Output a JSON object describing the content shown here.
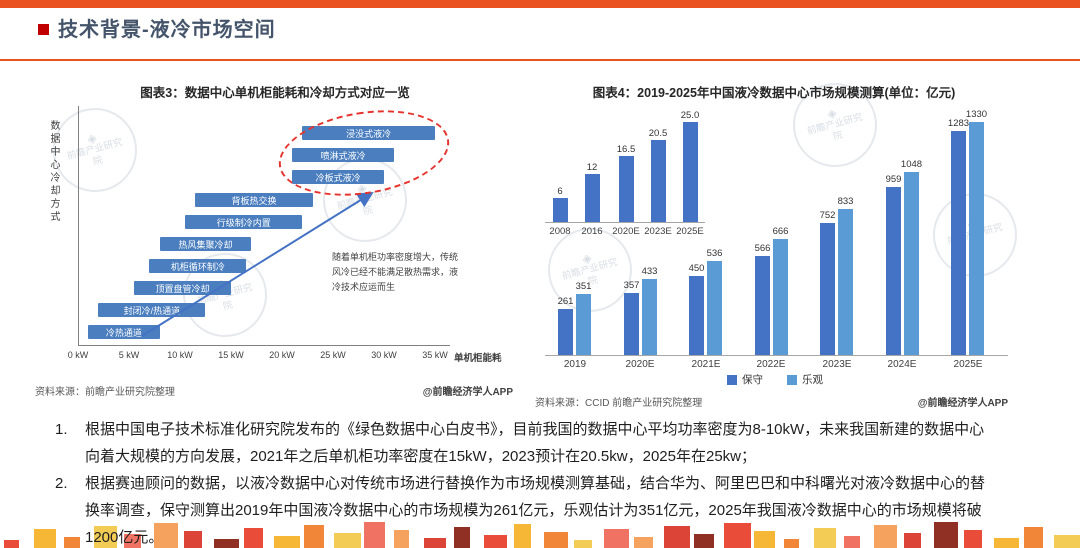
{
  "page": {
    "title": "技术背景-液冷市场空间"
  },
  "colors": {
    "accent_orange": "#ea5222",
    "bullet_red": "#c00000",
    "title_text": "#44546a",
    "bar_blue": "#4a7ebe",
    "highlight_red": "#e5342e"
  },
  "watermark": {
    "text": "前瞻产业研究院"
  },
  "chart_data": [
    {
      "type": "bar",
      "id": "chart3",
      "title": "图表3：数据中心单机柜能耗和冷却方式对应一览",
      "orientation": "horizontal-range",
      "xlabel": "单机柜能耗",
      "ylabel": "数据中心冷却方式",
      "x_ticks": [
        "0 kW",
        "5 kW",
        "10 kW",
        "15 kW",
        "20 kW",
        "25 kW",
        "30 kW",
        "35 kW"
      ],
      "xlim_kw": [
        0,
        36
      ],
      "grid": false,
      "methods": [
        {
          "label": "浸没式液冷",
          "range_kw": [
            22,
            35
          ],
          "highlighted": true
        },
        {
          "label": "喷淋式液冷",
          "range_kw": [
            21,
            31
          ],
          "highlighted": true
        },
        {
          "label": "冷板式液冷",
          "range_kw": [
            21,
            30
          ],
          "highlighted": true
        },
        {
          "label": "背板热交换",
          "range_kw": [
            11.5,
            23
          ],
          "highlighted": false
        },
        {
          "label": "行级制冷内置",
          "range_kw": [
            10.5,
            22
          ],
          "highlighted": false
        },
        {
          "label": "热风集聚冷却",
          "range_kw": [
            8,
            17
          ],
          "highlighted": false
        },
        {
          "label": "机柜循环制冷",
          "range_kw": [
            7,
            16.5
          ],
          "highlighted": false
        },
        {
          "label": "顶置盘管冷却",
          "range_kw": [
            5.5,
            15
          ],
          "highlighted": false
        },
        {
          "label": "封闭冷/热通道",
          "range_kw": [
            2,
            12.5
          ],
          "highlighted": false
        },
        {
          "label": "冷热通道",
          "range_kw": [
            1,
            8
          ],
          "highlighted": false
        }
      ],
      "annotation": "随着单机柜功率密度增大，传统风冷已经不能满足散热需求，液冷技术应运而生",
      "source": "资料来源：前瞻产业研究院整理",
      "credit": "@前瞻经济学人APP"
    },
    {
      "type": "bar",
      "id": "chart4",
      "title": "图表4：2019-2025年中国液冷数据中心市场规模测算(单位：亿元)",
      "categories": [
        "2019",
        "2020E",
        "2021E",
        "2022E",
        "2023E",
        "2024E",
        "2025E"
      ],
      "series": [
        {
          "name": "保守",
          "color": "#4472c4",
          "values": [
            261,
            357,
            450,
            566,
            752,
            959,
            1283
          ]
        },
        {
          "name": "乐观",
          "color": "#5b9bd5",
          "values": [
            351,
            433,
            536,
            666,
            833,
            1048,
            1330
          ]
        }
      ],
      "ylim": [
        0,
        1400
      ],
      "grid": false,
      "legend_position": "bottom",
      "inset": {
        "categories": [
          "2008",
          "2016",
          "2020E",
          "2023E",
          "2025E"
        ],
        "values": [
          6,
          12,
          16.5,
          20.5,
          25
        ],
        "value_labels": [
          "6",
          "12",
          "16.5",
          "20.5",
          "25.0"
        ]
      },
      "source": "资料来源：CCID 前瞻产业研究院整理",
      "credit": "@前瞻经济学人APP"
    }
  ],
  "notes": [
    {
      "num": "1.",
      "text": "根据中国电子技术标准化研究院发布的《绿色数据中心白皮书》，目前我国的数据中心平均功率密度为8-10kW，未来我国新建的数据中心向着大规模的方向发展，2021年之后单机柜功率密度在15kW，2023预计在20.5kw，2025年在25kw；"
    },
    {
      "num": "2.",
      "text": "根据赛迪顾问的数据，以液冷数据中心对传统市场进行替换作为市场规模测算基础，结合华为、阿里巴巴和中科曙光对液冷数据中心的替换率调查，保守测算出2019年中国液冷数据中心的市场规模为261亿元，乐观估计为351亿元，2025年我国液冷数据中心的市场规模将破1200亿元。"
    }
  ]
}
